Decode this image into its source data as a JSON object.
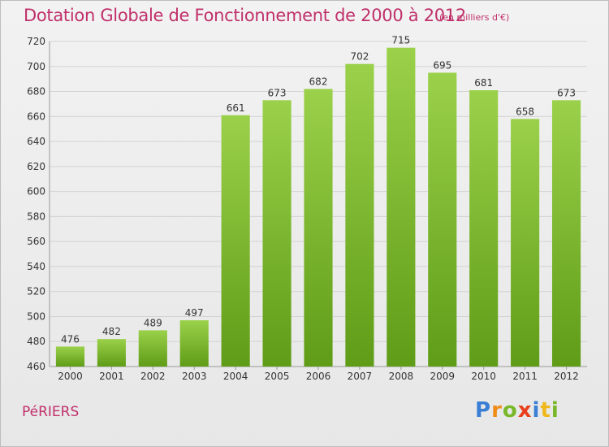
{
  "header": {
    "title": "Dotation Globale de Fonctionnement de 2000 à 2012",
    "subtitle": "(en milliers d'€)"
  },
  "footer": {
    "commune": "PéRIERS",
    "logo_letters": [
      {
        "ch": "P",
        "color": "#3a7fd5"
      },
      {
        "ch": "r",
        "color": "#f08c1a"
      },
      {
        "ch": "o",
        "color": "#78b828"
      },
      {
        "ch": "x",
        "color": "#e8401c"
      },
      {
        "ch": "i",
        "color": "#3a7fd5"
      },
      {
        "ch": "t",
        "color": "#f0b81a"
      },
      {
        "ch": "i",
        "color": "#78b828"
      }
    ]
  },
  "colors": {
    "bar_top": "#9bd14a",
    "bar_bottom": "#5f9c17",
    "accent": "#c0306a"
  },
  "chart_data": {
    "type": "bar",
    "categories": [
      "2000",
      "2001",
      "2002",
      "2003",
      "2004",
      "2005",
      "2006",
      "2007",
      "2008",
      "2009",
      "2010",
      "2011",
      "2012"
    ],
    "values": [
      476,
      482,
      489,
      497,
      661,
      673,
      682,
      702,
      715,
      695,
      681,
      658,
      673
    ],
    "ylim": [
      460,
      720
    ],
    "yticks": [
      460,
      480,
      500,
      520,
      540,
      560,
      580,
      600,
      620,
      640,
      660,
      680,
      700,
      720
    ],
    "grid": true
  }
}
